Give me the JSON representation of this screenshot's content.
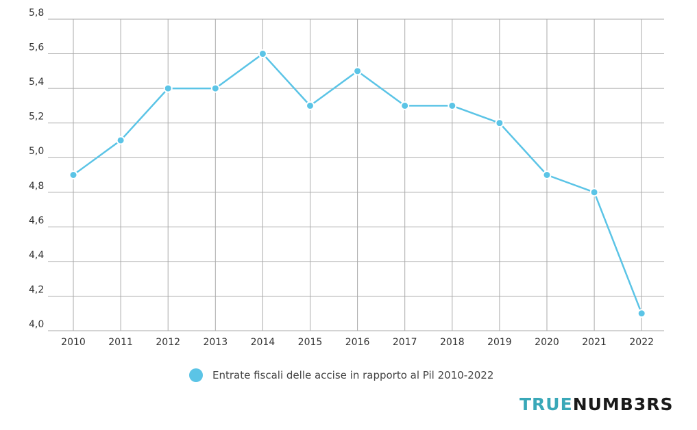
{
  "chart_data": {
    "type": "line",
    "x": [
      "2010",
      "2011",
      "2012",
      "2013",
      "2014",
      "2015",
      "2016",
      "2017",
      "2018",
      "2019",
      "2020",
      "2021",
      "2022"
    ],
    "series": [
      {
        "name": "Entrate fiscali delle accise in rapporto al Pil 2010-2022",
        "values": [
          4.9,
          5.1,
          5.4,
          5.4,
          5.6,
          5.3,
          5.5,
          5.3,
          5.3,
          5.2,
          4.9,
          4.8,
          4.1
        ]
      }
    ],
    "ylim": [
      4.0,
      5.8
    ],
    "yticks": [
      "4,0",
      "4,2",
      "4,4",
      "4,6",
      "4,8",
      "5,0",
      "5,2",
      "5,4",
      "5,6",
      "5,8"
    ],
    "grid": true,
    "legend_position": "bottom-center",
    "title": "",
    "xlabel": "",
    "ylabel": ""
  },
  "colors": {
    "series": "#5bc4e6",
    "grid": "#aaaaaa",
    "brand": "#1a1a1a",
    "brand_accent": "#39a8b8"
  },
  "brand": {
    "part1": "TRUE",
    "part2": "NUMB3RS"
  }
}
